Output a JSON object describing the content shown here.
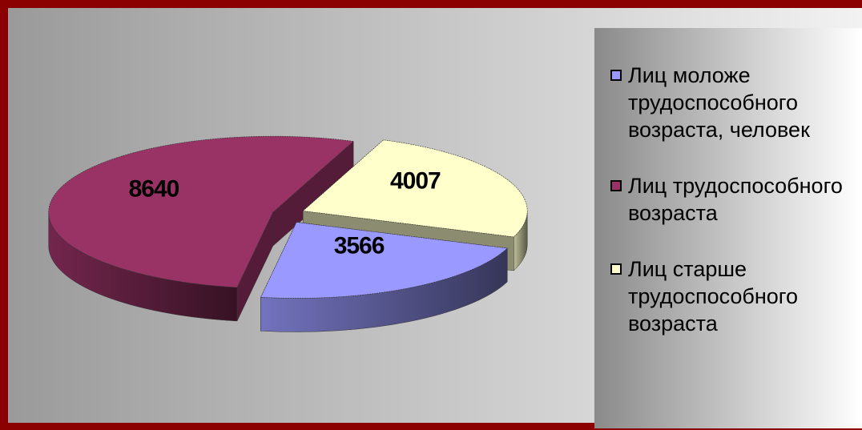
{
  "chart_data": {
    "type": "pie3d",
    "categories": [
      "Лиц моложе трудоспособного возраста, человек",
      "Лиц трудоспособного возраста",
      "Лиц старше трудоспособного возраста"
    ],
    "values": [
      3566,
      8640,
      4007
    ],
    "colors": [
      "#9999ff",
      "#993366",
      "#ffffcc"
    ],
    "legend": "right"
  }
}
